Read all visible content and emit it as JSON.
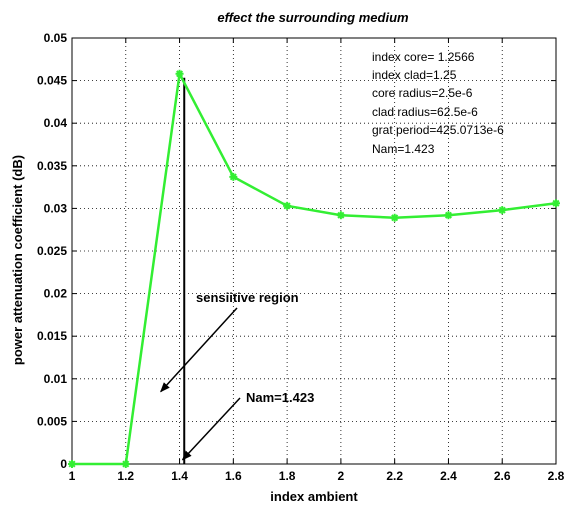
{
  "chart_data": {
    "type": "line",
    "title": "effect the surrounding medium",
    "xlabel": "index ambient",
    "ylabel": "power attenuation coefficient (dB)",
    "xlim": [
      1,
      2.8
    ],
    "ylim": [
      0,
      0.05
    ],
    "x_ticks": [
      "1",
      "1.2",
      "1.4",
      "1.6",
      "1.8",
      "2",
      "2.2",
      "2.4",
      "2.6",
      "2.8"
    ],
    "y_ticks": [
      "0",
      "0.005",
      "0.01",
      "0.015",
      "0.02",
      "0.025",
      "0.03",
      "0.035",
      "0.04",
      "0.045",
      "0.05"
    ],
    "grid": true,
    "series": [
      {
        "color": "#33ee33",
        "marker": "star",
        "x": [
          1.0,
          1.2,
          1.4,
          1.6,
          1.8,
          2.0,
          2.2,
          2.4,
          2.6,
          2.8
        ],
        "y": [
          0.0,
          0.0,
          0.0458,
          0.0337,
          0.0303,
          0.0292,
          0.0289,
          0.0292,
          0.0298,
          0.0306
        ]
      }
    ],
    "info_box": [
      "index core= 1.2566",
      "index clad=1.25",
      "core radius=2.5e-6",
      "clad radius=62.5e-6",
      "grat period=425.0713e-6",
      "Nam=1.423"
    ],
    "annotations": [
      {
        "text": "sensiitive region",
        "target_x": 1.33,
        "target_y": 0.0085
      },
      {
        "text": "Nam=1.423",
        "target_x": 1.4,
        "target_y": 0.0005
      }
    ],
    "vertical_marker_x": 1.423
  }
}
